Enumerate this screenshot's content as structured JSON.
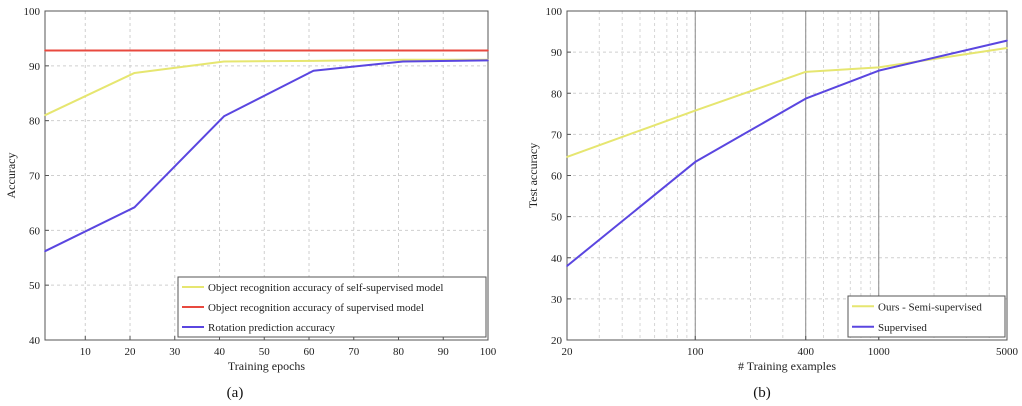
{
  "chart_data": [
    {
      "type": "line",
      "title": "",
      "xlabel": "Training epochs",
      "ylabel": "Accuracy",
      "caption": "(a)",
      "xlim": [
        1,
        100
      ],
      "ylim": [
        40,
        100
      ],
      "xticks": [
        10,
        20,
        30,
        40,
        50,
        60,
        70,
        80,
        90,
        100
      ],
      "yticks": [
        40,
        50,
        60,
        70,
        80,
        90,
        100
      ],
      "x": [
        1,
        21,
        41,
        61,
        81,
        100
      ],
      "grid": true,
      "legend_position": "bottom-right",
      "series": [
        {
          "name": "Object recognition accuracy of self-supervised model",
          "color": "#e6e670",
          "values": [
            81,
            88.7,
            90.8,
            90.9,
            91.1,
            91.1
          ]
        },
        {
          "name": "Object recognition accuracy of supervised model",
          "color": "#e8493f",
          "values": [
            92.8,
            92.8,
            92.8,
            92.8,
            92.8,
            92.8
          ]
        },
        {
          "name": "Rotation prediction accuracy",
          "color": "#5a46e0",
          "values": [
            56.2,
            64.2,
            80.8,
            89.1,
            90.8,
            91
          ]
        }
      ]
    },
    {
      "type": "line",
      "title": "",
      "xlabel": "# Training examples",
      "ylabel": "Test accuracy",
      "caption": "(b)",
      "xscale": "log",
      "xlim": [
        20,
        5000
      ],
      "ylim": [
        20,
        100
      ],
      "xticks": [
        20,
        100,
        400,
        1000,
        5000
      ],
      "yticks": [
        20,
        30,
        40,
        50,
        60,
        70,
        80,
        90,
        100
      ],
      "x": [
        20,
        100,
        400,
        1000,
        5000
      ],
      "grid": true,
      "legend_position": "bottom-right",
      "series": [
        {
          "name": "Ours - Semi-supervised",
          "color": "#e6e670",
          "values": [
            64.5,
            75.8,
            85.2,
            86.3,
            91
          ]
        },
        {
          "name": "Supervised",
          "color": "#5a46e0",
          "values": [
            38,
            63.3,
            78.7,
            85.5,
            92.8
          ]
        }
      ]
    }
  ]
}
